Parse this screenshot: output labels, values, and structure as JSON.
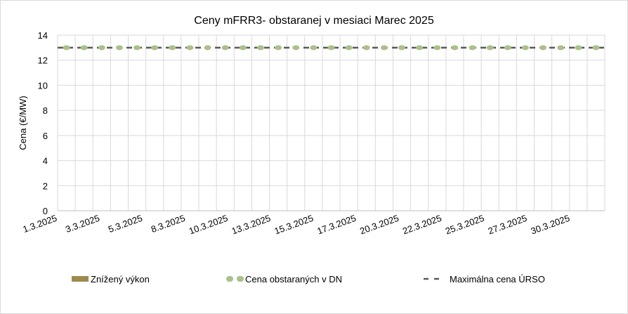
{
  "chart_data": {
    "type": "line",
    "title": "Ceny mFRR3- obstaranej v mesiaci Marec 2025",
    "ylabel": "Cena (€/MW)",
    "xlabel": "",
    "ylim": [
      0,
      14
    ],
    "yticks": [
      0,
      2,
      4,
      6,
      8,
      10,
      12,
      14
    ],
    "grid": true,
    "legend_position": "bottom",
    "categories_count": 31,
    "xtick_labels": [
      "1.3.2025",
      "3.3.2025",
      "5.3.2025",
      "8.3.2025",
      "10.3.2025",
      "13.3.2025",
      "15.3.2025",
      "17.3.2025",
      "20.3.2025",
      "22.3.2025",
      "25.3.2025",
      "27.3.2025",
      "30.3.2025"
    ],
    "series": [
      {
        "name": "Znížený výkon",
        "kind": "bar",
        "color": "#9c8b4e",
        "values": []
      },
      {
        "name": "Cena obstaraných v DN",
        "kind": "marker",
        "color": "#a9c18a",
        "values": [
          13,
          13,
          13,
          13,
          13,
          13,
          13,
          13,
          13,
          13,
          13,
          13,
          13,
          13,
          13,
          13,
          13,
          13,
          13,
          13,
          13,
          13,
          13,
          13,
          13,
          13,
          13,
          13,
          13,
          13,
          13
        ]
      },
      {
        "name": "Maximálna cena ÚRSO",
        "kind": "dashed-line",
        "color": "#595959",
        "values": [
          13,
          13,
          13,
          13,
          13,
          13,
          13,
          13,
          13,
          13,
          13,
          13,
          13,
          13,
          13,
          13,
          13,
          13,
          13,
          13,
          13,
          13,
          13,
          13,
          13,
          13,
          13,
          13,
          13,
          13,
          13
        ]
      }
    ]
  }
}
